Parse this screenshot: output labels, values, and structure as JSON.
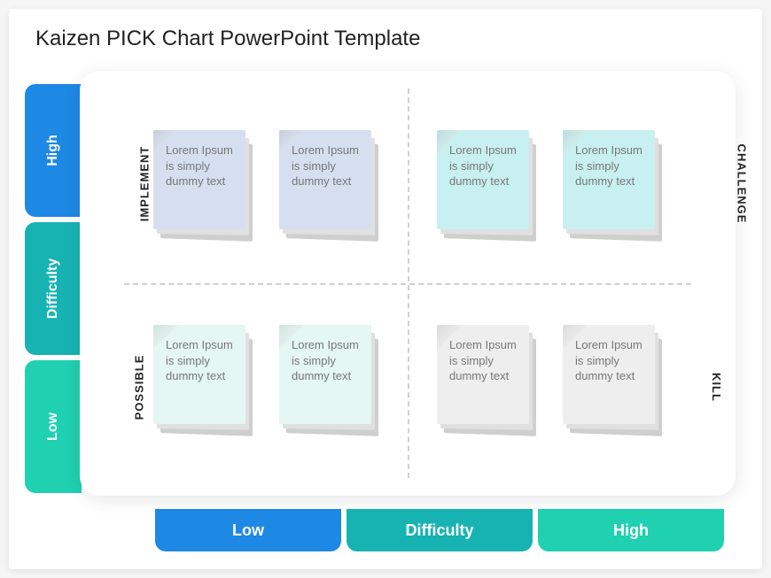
{
  "title": "Kaizen PICK Chart PowerPoint Template",
  "axis": {
    "y": {
      "high": {
        "label": "High",
        "color": "#1e88e5"
      },
      "mid": {
        "label": "Difficulty",
        "color": "#17b3b3"
      },
      "low": {
        "label": "Low",
        "color": "#1fd1b0"
      }
    },
    "x": {
      "low": {
        "label": "Low",
        "color": "#1e88e5"
      },
      "mid": {
        "label": "Difficulty",
        "color": "#17b3b3"
      },
      "high": {
        "label": "High",
        "color": "#1fd1b0"
      }
    }
  },
  "quadrants": {
    "implement": {
      "label": "IMPLEMENT",
      "note_color": "#d5dff0",
      "notes": [
        {
          "text": "Lorem Ipsum is simply dummy text"
        },
        {
          "text": "Lorem Ipsum is simply dummy text"
        }
      ]
    },
    "challenge": {
      "label": "CHALLENGE",
      "note_color": "#c8f0f1",
      "notes": [
        {
          "text": "Lorem Ipsum is simply dummy text"
        },
        {
          "text": "Lorem Ipsum is simply dummy text"
        }
      ]
    },
    "possible": {
      "label": "POSSIBLE",
      "note_color": "#e4f7f2",
      "notes": [
        {
          "text": "Lorem Ipsum is simply dummy text"
        },
        {
          "text": "Lorem Ipsum is simply dummy text"
        }
      ]
    },
    "kill": {
      "label": "KILL",
      "note_color": "#eeeeee",
      "notes": [
        {
          "text": "Lorem Ipsum is simply dummy text"
        },
        {
          "text": "Lorem Ipsum is simply dummy text"
        }
      ]
    }
  },
  "style": {
    "background": "#ffffff",
    "divider_color": "#d0d0d0",
    "note_text_color": "#777777",
    "title_color": "#222222",
    "title_fontsize": 24,
    "axis_label_fontsize": 18,
    "quad_label_fontsize": 13
  }
}
